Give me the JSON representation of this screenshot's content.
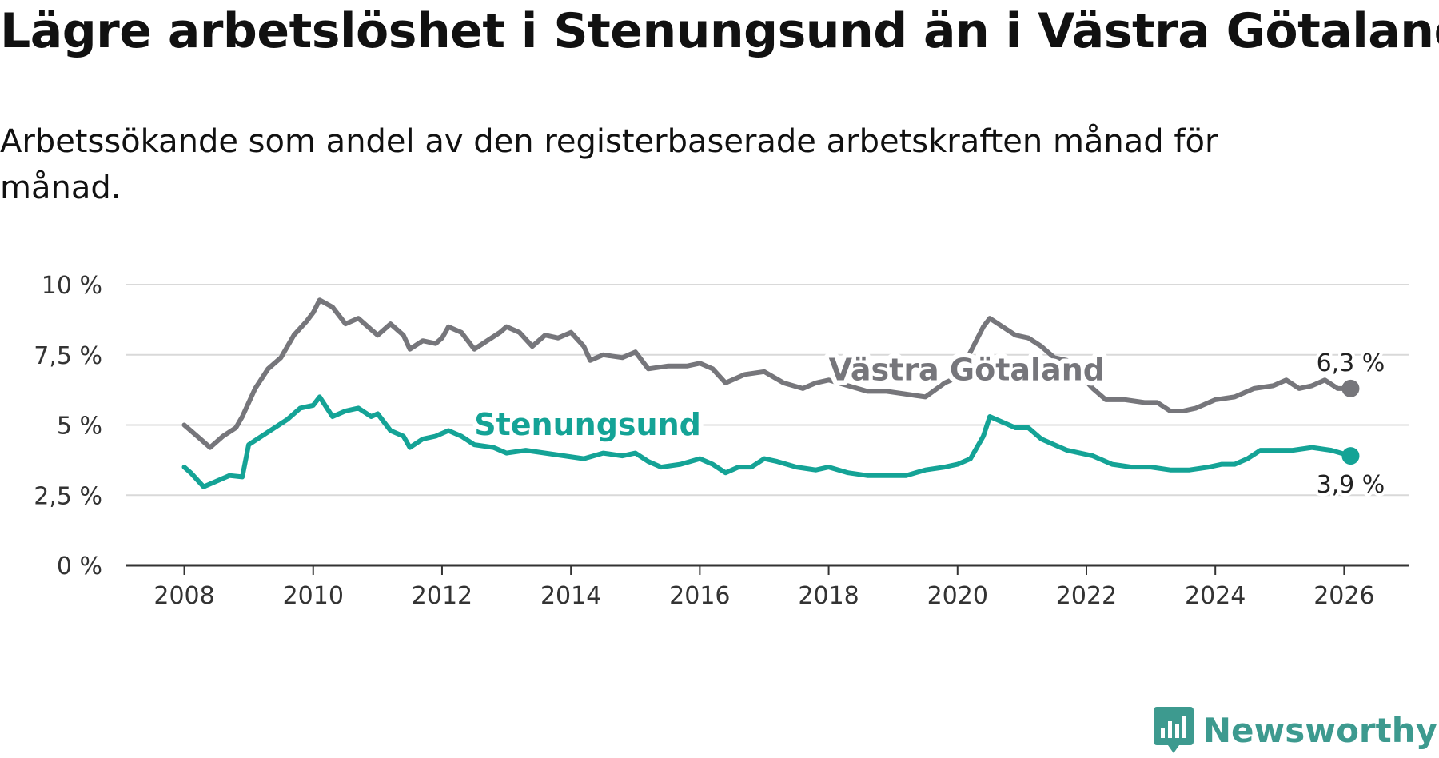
{
  "header": {
    "title": "Lägre arbetslöshet i Stenungsund än i Västra Götaland",
    "subtitle": "Arbetssökande som andel av den registerbaserade arbetskraften månad för månad."
  },
  "brand": {
    "name": "Newsworthy",
    "color": "#3d9a8f",
    "icon": "newsworthy-logo-icon"
  },
  "chart_data": {
    "type": "line",
    "title": "Lägre arbetslöshet i Stenungsund än i Västra Götaland",
    "subtitle": "Arbetssökande som andel av den registerbaserade arbetskraften månad för månad.",
    "xlabel": "",
    "ylabel": "",
    "xlim": [
      2007.1,
      2027.0
    ],
    "ylim": [
      0,
      10
    ],
    "grid": true,
    "x_ticks": [
      2008,
      2010,
      2012,
      2014,
      2016,
      2018,
      2020,
      2022,
      2024,
      2026
    ],
    "x_tick_labels": [
      "2008",
      "2010",
      "2012",
      "2014",
      "2016",
      "2018",
      "2020",
      "2022",
      "2024",
      "2026"
    ],
    "y_ticks": [
      0,
      2.5,
      5,
      7.5,
      10
    ],
    "y_tick_labels": [
      "0 %",
      "2,5 %",
      "5 %",
      "7,5 %",
      "10 %"
    ],
    "series": [
      {
        "name": "Västra Götaland",
        "color": "#76767b",
        "label_anchor": [
          2018.0,
          6.6
        ],
        "end_label": "6,3 %",
        "end_label_position": "above",
        "points": [
          [
            2008.0,
            5.0
          ],
          [
            2008.2,
            4.6
          ],
          [
            2008.4,
            4.2
          ],
          [
            2008.6,
            4.6
          ],
          [
            2008.8,
            4.9
          ],
          [
            2008.9,
            5.3
          ],
          [
            2009.1,
            6.3
          ],
          [
            2009.3,
            7.0
          ],
          [
            2009.5,
            7.4
          ],
          [
            2009.7,
            8.2
          ],
          [
            2009.9,
            8.7
          ],
          [
            2010.0,
            9.0
          ],
          [
            2010.1,
            9.45
          ],
          [
            2010.3,
            9.2
          ],
          [
            2010.5,
            8.6
          ],
          [
            2010.7,
            8.8
          ],
          [
            2010.9,
            8.4
          ],
          [
            2011.0,
            8.2
          ],
          [
            2011.2,
            8.6
          ],
          [
            2011.4,
            8.2
          ],
          [
            2011.5,
            7.7
          ],
          [
            2011.7,
            8.0
          ],
          [
            2011.9,
            7.9
          ],
          [
            2012.0,
            8.1
          ],
          [
            2012.1,
            8.5
          ],
          [
            2012.3,
            8.3
          ],
          [
            2012.5,
            7.7
          ],
          [
            2012.7,
            8.0
          ],
          [
            2012.9,
            8.3
          ],
          [
            2013.0,
            8.5
          ],
          [
            2013.2,
            8.3
          ],
          [
            2013.4,
            7.8
          ],
          [
            2013.6,
            8.2
          ],
          [
            2013.8,
            8.1
          ],
          [
            2014.0,
            8.3
          ],
          [
            2014.2,
            7.8
          ],
          [
            2014.3,
            7.3
          ],
          [
            2014.5,
            7.5
          ],
          [
            2014.8,
            7.4
          ],
          [
            2015.0,
            7.6
          ],
          [
            2015.2,
            7.0
          ],
          [
            2015.5,
            7.1
          ],
          [
            2015.8,
            7.1
          ],
          [
            2016.0,
            7.2
          ],
          [
            2016.2,
            7.0
          ],
          [
            2016.4,
            6.5
          ],
          [
            2016.7,
            6.8
          ],
          [
            2017.0,
            6.9
          ],
          [
            2017.3,
            6.5
          ],
          [
            2017.6,
            6.3
          ],
          [
            2017.8,
            6.5
          ],
          [
            2018.0,
            6.6
          ],
          [
            2018.3,
            6.4
          ],
          [
            2018.6,
            6.2
          ],
          [
            2018.9,
            6.2
          ],
          [
            2019.2,
            6.1
          ],
          [
            2019.5,
            6.0
          ],
          [
            2019.8,
            6.5
          ],
          [
            2020.0,
            6.7
          ],
          [
            2020.2,
            7.6
          ],
          [
            2020.4,
            8.5
          ],
          [
            2020.5,
            8.8
          ],
          [
            2020.7,
            8.5
          ],
          [
            2020.9,
            8.2
          ],
          [
            2021.1,
            8.1
          ],
          [
            2021.3,
            7.8
          ],
          [
            2021.5,
            7.4
          ],
          [
            2021.7,
            7.3
          ],
          [
            2021.9,
            6.8
          ],
          [
            2022.1,
            6.3
          ],
          [
            2022.3,
            5.9
          ],
          [
            2022.6,
            5.9
          ],
          [
            2022.9,
            5.8
          ],
          [
            2023.1,
            5.8
          ],
          [
            2023.3,
            5.5
          ],
          [
            2023.5,
            5.5
          ],
          [
            2023.7,
            5.6
          ],
          [
            2024.0,
            5.9
          ],
          [
            2024.3,
            6.0
          ],
          [
            2024.6,
            6.3
          ],
          [
            2024.9,
            6.4
          ],
          [
            2025.1,
            6.6
          ],
          [
            2025.3,
            6.3
          ],
          [
            2025.5,
            6.4
          ],
          [
            2025.7,
            6.6
          ],
          [
            2025.9,
            6.3
          ],
          [
            2026.1,
            6.3
          ]
        ]
      },
      {
        "name": "Stenungsund",
        "color": "#14a396",
        "label_anchor": [
          2012.5,
          4.65
        ],
        "end_label": "3,9 %",
        "end_label_position": "below",
        "points": [
          [
            2008.0,
            3.5
          ],
          [
            2008.1,
            3.3
          ],
          [
            2008.3,
            2.8
          ],
          [
            2008.5,
            3.0
          ],
          [
            2008.7,
            3.2
          ],
          [
            2008.9,
            3.15
          ],
          [
            2009.0,
            4.3
          ],
          [
            2009.2,
            4.6
          ],
          [
            2009.4,
            4.9
          ],
          [
            2009.6,
            5.2
          ],
          [
            2009.8,
            5.6
          ],
          [
            2010.0,
            5.7
          ],
          [
            2010.1,
            6.0
          ],
          [
            2010.3,
            5.3
          ],
          [
            2010.5,
            5.5
          ],
          [
            2010.7,
            5.6
          ],
          [
            2010.9,
            5.3
          ],
          [
            2011.0,
            5.4
          ],
          [
            2011.2,
            4.8
          ],
          [
            2011.4,
            4.6
          ],
          [
            2011.5,
            4.2
          ],
          [
            2011.7,
            4.5
          ],
          [
            2011.9,
            4.6
          ],
          [
            2012.1,
            4.8
          ],
          [
            2012.3,
            4.6
          ],
          [
            2012.5,
            4.3
          ],
          [
            2012.8,
            4.2
          ],
          [
            2013.0,
            4.0
          ],
          [
            2013.3,
            4.1
          ],
          [
            2013.6,
            4.0
          ],
          [
            2013.9,
            3.9
          ],
          [
            2014.2,
            3.8
          ],
          [
            2014.5,
            4.0
          ],
          [
            2014.8,
            3.9
          ],
          [
            2015.0,
            4.0
          ],
          [
            2015.2,
            3.7
          ],
          [
            2015.4,
            3.5
          ],
          [
            2015.7,
            3.6
          ],
          [
            2016.0,
            3.8
          ],
          [
            2016.2,
            3.6
          ],
          [
            2016.4,
            3.3
          ],
          [
            2016.6,
            3.5
          ],
          [
            2016.8,
            3.5
          ],
          [
            2017.0,
            3.8
          ],
          [
            2017.2,
            3.7
          ],
          [
            2017.5,
            3.5
          ],
          [
            2017.8,
            3.4
          ],
          [
            2018.0,
            3.5
          ],
          [
            2018.3,
            3.3
          ],
          [
            2018.6,
            3.2
          ],
          [
            2018.9,
            3.2
          ],
          [
            2019.2,
            3.2
          ],
          [
            2019.5,
            3.4
          ],
          [
            2019.8,
            3.5
          ],
          [
            2020.0,
            3.6
          ],
          [
            2020.2,
            3.8
          ],
          [
            2020.4,
            4.6
          ],
          [
            2020.5,
            5.3
          ],
          [
            2020.7,
            5.1
          ],
          [
            2020.9,
            4.9
          ],
          [
            2021.1,
            4.9
          ],
          [
            2021.3,
            4.5
          ],
          [
            2021.5,
            4.3
          ],
          [
            2021.7,
            4.1
          ],
          [
            2021.9,
            4.0
          ],
          [
            2022.1,
            3.9
          ],
          [
            2022.4,
            3.6
          ],
          [
            2022.7,
            3.5
          ],
          [
            2023.0,
            3.5
          ],
          [
            2023.3,
            3.4
          ],
          [
            2023.6,
            3.4
          ],
          [
            2023.9,
            3.5
          ],
          [
            2024.1,
            3.6
          ],
          [
            2024.3,
            3.6
          ],
          [
            2024.5,
            3.8
          ],
          [
            2024.7,
            4.1
          ],
          [
            2025.0,
            4.1
          ],
          [
            2025.2,
            4.1
          ],
          [
            2025.5,
            4.2
          ],
          [
            2025.8,
            4.1
          ],
          [
            2026.1,
            3.9
          ]
        ]
      }
    ]
  }
}
